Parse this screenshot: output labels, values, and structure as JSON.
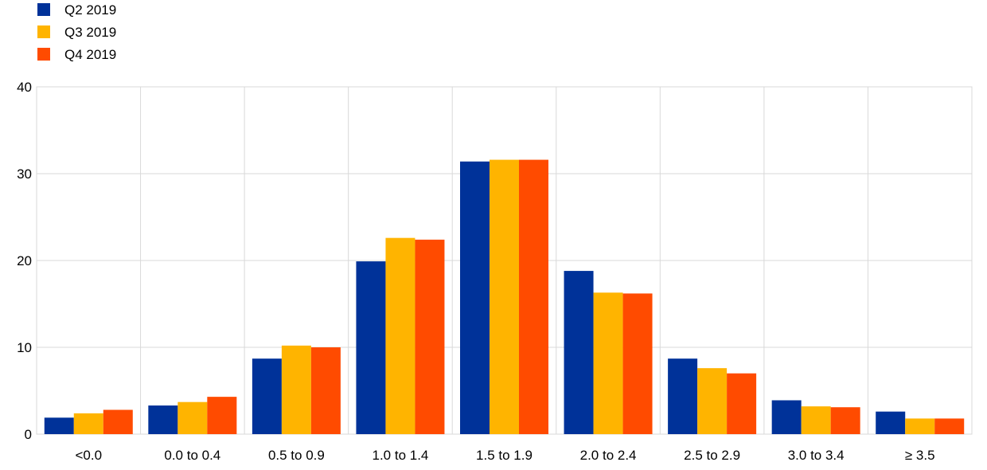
{
  "chart_data": {
    "type": "bar",
    "title": "",
    "xlabel": "",
    "ylabel": "",
    "ylim": [
      0,
      40
    ],
    "yticks": [
      0,
      10,
      20,
      30,
      40
    ],
    "grid": true,
    "legend_position": "top-left",
    "categories": [
      "<0.0",
      "0.0 to 0.4",
      "0.5 to 0.9",
      "1.0 to 1.4",
      "1.5 to 1.9",
      "2.0 to 2.4",
      "2.5 to 2.9",
      "3.0 to 3.4",
      "≥ 3.5"
    ],
    "series": [
      {
        "name": "Q2 2019",
        "color": "#003299",
        "values": [
          1.9,
          3.3,
          8.7,
          19.9,
          31.4,
          18.8,
          8.7,
          3.9,
          2.6
        ]
      },
      {
        "name": "Q3 2019",
        "color": "#FFB400",
        "values": [
          2.4,
          3.7,
          10.2,
          22.6,
          31.6,
          16.3,
          7.6,
          3.2,
          1.8
        ]
      },
      {
        "name": "Q4 2019",
        "color": "#FF4B00",
        "values": [
          2.8,
          4.3,
          10.0,
          22.4,
          31.6,
          16.2,
          7.0,
          3.1,
          1.8
        ]
      }
    ]
  }
}
